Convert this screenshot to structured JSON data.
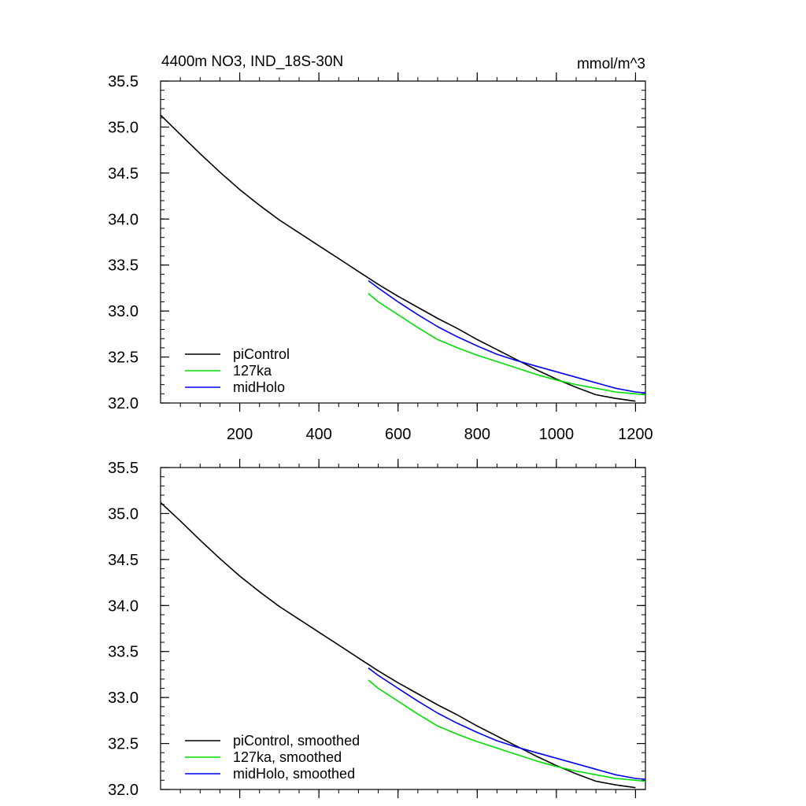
{
  "chart_data": [
    {
      "type": "line",
      "title": "4400m NO3, IND_18S-30N",
      "units": "mmol/m^3",
      "xlabel": "",
      "ylabel": "",
      "xlim": [
        0,
        1225
      ],
      "ylim": [
        32.0,
        35.5
      ],
      "xticks": [
        200,
        400,
        600,
        800,
        1000,
        1200
      ],
      "xtick_labels": [
        "200",
        "400",
        "600",
        "800",
        "1000",
        "1200"
      ],
      "yticks": [
        32.0,
        32.5,
        33.0,
        33.5,
        34.0,
        34.5,
        35.0,
        35.5
      ],
      "ytick_labels": [
        "32.0",
        "32.5",
        "33.0",
        "33.5",
        "34.0",
        "34.5",
        "35.0",
        "35.5"
      ],
      "grid": false,
      "legend_position": "bottom-left",
      "series": [
        {
          "name": "piControl",
          "color": "#000000",
          "points": [
            [
              0,
              35.13
            ],
            [
              50,
              34.92
            ],
            [
              100,
              34.71
            ],
            [
              150,
              34.51
            ],
            [
              200,
              34.32
            ],
            [
              250,
              34.15
            ],
            [
              300,
              33.99
            ],
            [
              350,
              33.85
            ],
            [
              400,
              33.71
            ],
            [
              450,
              33.57
            ],
            [
              500,
              33.43
            ],
            [
              550,
              33.29
            ],
            [
              600,
              33.16
            ],
            [
              650,
              33.04
            ],
            [
              700,
              32.92
            ],
            [
              750,
              32.81
            ],
            [
              800,
              32.69
            ],
            [
              850,
              32.58
            ],
            [
              900,
              32.47
            ],
            [
              950,
              32.36
            ],
            [
              1000,
              32.26
            ],
            [
              1050,
              32.17
            ],
            [
              1100,
              32.09
            ],
            [
              1150,
              32.05
            ],
            [
              1200,
              32.02
            ]
          ]
        },
        {
          "name": "127ka",
          "color": "#00dd00",
          "points": [
            [
              525,
              33.19
            ],
            [
              550,
              33.1
            ],
            [
              600,
              32.96
            ],
            [
              650,
              32.82
            ],
            [
              700,
              32.69
            ],
            [
              750,
              32.6
            ],
            [
              800,
              32.52
            ],
            [
              850,
              32.45
            ],
            [
              900,
              32.38
            ],
            [
              950,
              32.31
            ],
            [
              1000,
              32.25
            ],
            [
              1050,
              32.2
            ],
            [
              1100,
              32.16
            ],
            [
              1150,
              32.12
            ],
            [
              1200,
              32.1
            ],
            [
              1225,
              32.09
            ]
          ]
        },
        {
          "name": "midHolo",
          "color": "#0000ee",
          "points": [
            [
              525,
              33.33
            ],
            [
              550,
              33.25
            ],
            [
              600,
              33.1
            ],
            [
              650,
              32.96
            ],
            [
              700,
              32.83
            ],
            [
              750,
              32.72
            ],
            [
              800,
              32.62
            ],
            [
              850,
              32.53
            ],
            [
              900,
              32.46
            ],
            [
              950,
              32.4
            ],
            [
              1000,
              32.34
            ],
            [
              1050,
              32.28
            ],
            [
              1100,
              32.22
            ],
            [
              1150,
              32.16
            ],
            [
              1200,
              32.12
            ],
            [
              1225,
              32.11
            ]
          ]
        }
      ]
    },
    {
      "type": "line",
      "title": "",
      "xlabel": "",
      "ylabel": "",
      "xlim": [
        0,
        1225
      ],
      "ylim": [
        32.0,
        35.5
      ],
      "xticks": [
        200,
        400,
        600,
        800,
        1000,
        1200
      ],
      "yticks": [
        32.0,
        32.5,
        33.0,
        33.5,
        34.0,
        34.5,
        35.0,
        35.5
      ],
      "ytick_labels": [
        "32.0",
        "32.5",
        "33.0",
        "33.5",
        "34.0",
        "34.5",
        "35.0",
        "35.5"
      ],
      "grid": false,
      "legend_position": "bottom-left",
      "series": [
        {
          "name": "piControl, smoothed",
          "color": "#000000",
          "points": [
            [
              0,
              35.12
            ],
            [
              50,
              34.92
            ],
            [
              100,
              34.71
            ],
            [
              150,
              34.51
            ],
            [
              200,
              34.32
            ],
            [
              250,
              34.15
            ],
            [
              300,
              33.99
            ],
            [
              350,
              33.85
            ],
            [
              400,
              33.71
            ],
            [
              450,
              33.57
            ],
            [
              500,
              33.43
            ],
            [
              550,
              33.29
            ],
            [
              600,
              33.16
            ],
            [
              650,
              33.04
            ],
            [
              700,
              32.92
            ],
            [
              750,
              32.81
            ],
            [
              800,
              32.69
            ],
            [
              850,
              32.58
            ],
            [
              900,
              32.47
            ],
            [
              950,
              32.36
            ],
            [
              1000,
              32.26
            ],
            [
              1050,
              32.17
            ],
            [
              1100,
              32.09
            ],
            [
              1150,
              32.05
            ],
            [
              1200,
              32.02
            ]
          ]
        },
        {
          "name": "127ka, smoothed",
          "color": "#00dd00",
          "points": [
            [
              525,
              33.19
            ],
            [
              550,
              33.1
            ],
            [
              600,
              32.96
            ],
            [
              650,
              32.82
            ],
            [
              700,
              32.69
            ],
            [
              750,
              32.6
            ],
            [
              800,
              32.52
            ],
            [
              850,
              32.45
            ],
            [
              900,
              32.38
            ],
            [
              950,
              32.31
            ],
            [
              1000,
              32.25
            ],
            [
              1050,
              32.2
            ],
            [
              1100,
              32.16
            ],
            [
              1150,
              32.12
            ],
            [
              1200,
              32.1
            ],
            [
              1225,
              32.09
            ]
          ]
        },
        {
          "name": "midHolo, smoothed",
          "color": "#0000ee",
          "points": [
            [
              525,
              33.32
            ],
            [
              550,
              33.24
            ],
            [
              600,
              33.1
            ],
            [
              650,
              32.96
            ],
            [
              700,
              32.83
            ],
            [
              750,
              32.72
            ],
            [
              800,
              32.62
            ],
            [
              850,
              32.53
            ],
            [
              900,
              32.46
            ],
            [
              950,
              32.4
            ],
            [
              1000,
              32.34
            ],
            [
              1050,
              32.28
            ],
            [
              1100,
              32.22
            ],
            [
              1150,
              32.16
            ],
            [
              1200,
              32.12
            ],
            [
              1225,
              32.11
            ]
          ]
        }
      ]
    }
  ]
}
